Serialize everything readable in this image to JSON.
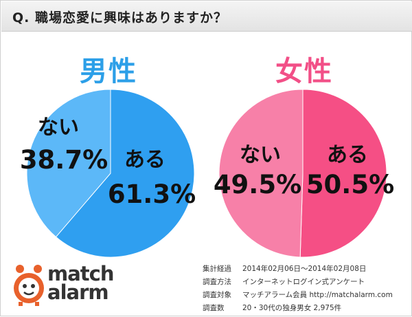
{
  "question": "Q. 職場恋愛に興味はありますか？",
  "colors": {
    "male_primary": "#2f9ff0",
    "male_secondary": "#5cb8f8",
    "female_primary": "#f54f85",
    "female_secondary": "#f780a8",
    "male_title": "#2c9fe8",
    "female_title": "#f24f87"
  },
  "chart_data": [
    {
      "type": "pie",
      "title": "男性",
      "slices": [
        {
          "label": "ある",
          "value": 61.3,
          "display": "61.3%"
        },
        {
          "label": "ない",
          "value": 38.7,
          "display": "38.7%"
        }
      ]
    },
    {
      "type": "pie",
      "title": "女性",
      "slices": [
        {
          "label": "ある",
          "value": 50.5,
          "display": "50.5%"
        },
        {
          "label": "ない",
          "value": 49.5,
          "display": "49.5%"
        }
      ]
    }
  ],
  "logo": {
    "line1": "match",
    "line2": "alarm"
  },
  "survey_info": [
    {
      "label": "集計経過",
      "value": "2014年02月06日～2014年02月08日"
    },
    {
      "label": "調査方法",
      "value": "インターネットログイン式アンケート"
    },
    {
      "label": "調査対象",
      "value": "マッチアラーム会員 http://matchalarm.com"
    },
    {
      "label": "調査数",
      "value": "20・30代の独身男女 2,975件"
    }
  ]
}
